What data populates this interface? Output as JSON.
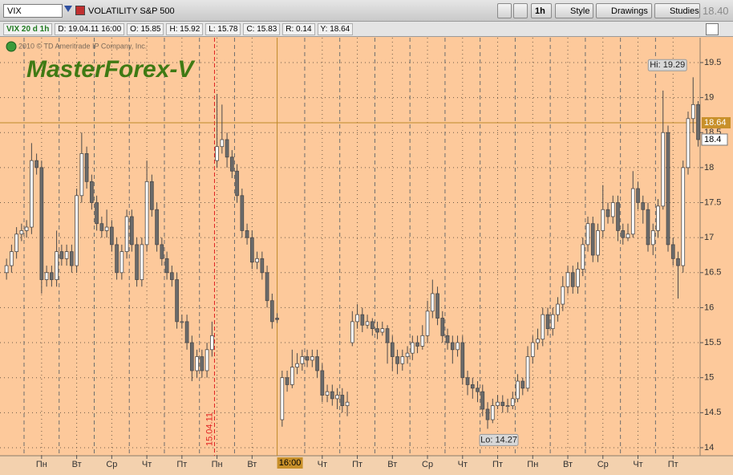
{
  "toolbar": {
    "symbol": "VIX",
    "description": "VOLATILITY S&P 500",
    "timeframe": "1h",
    "buttons": [
      "Style",
      "Drawings",
      "Studies"
    ],
    "last_price": "18.40"
  },
  "info_bar": [
    "VIX 20 d 1h",
    "D: 19.04.11 16:00",
    "O: 15.85",
    "H: 15.92",
    "L: 15.78",
    "C: 15.83",
    "R: 0.14",
    "Y: 18.64"
  ],
  "chart_data": {
    "type": "candlestick",
    "watermark": "MasterForex-V",
    "copyright": "2010 © TD Ameritrade IP Company, Inc.",
    "background": "#fdc99b",
    "up_color": "#ffffff",
    "down_color": "#6b6b6b",
    "grid": true,
    "candles": {
      "open": [
        16.5,
        16.6,
        16.8,
        17.05,
        17.1,
        17.15,
        18.1,
        18.0,
        16.4,
        16.5,
        16.4,
        16.8,
        16.7,
        16.8,
        16.6,
        17.6,
        18.2,
        17.8,
        17.5,
        17.2,
        17.1,
        17.15,
        16.9,
        16.5,
        16.8,
        17.3,
        16.9,
        16.4,
        16.9,
        17.8,
        17.4,
        16.9,
        16.7,
        16.5,
        16.4,
        15.8,
        15.8,
        15.5,
        15.1,
        15.3,
        15.1,
        15.4,
        18.1,
        18.3,
        18.4,
        18.15,
        17.95,
        17.6,
        17.1,
        17.0,
        16.65,
        16.7,
        16.5,
        16.1,
        15.85,
        14.4,
        15.0,
        14.9,
        15.15,
        15.2,
        15.3,
        15.25,
        15.3,
        15.1,
        14.75,
        14.8,
        14.7,
        14.75,
        14.6,
        15.5,
        15.8,
        15.9,
        15.75,
        15.8,
        15.7,
        15.65,
        15.7,
        15.5,
        15.3,
        15.2,
        15.3,
        15.35,
        15.5,
        15.45,
        15.6,
        15.95,
        16.2,
        15.85,
        15.6,
        15.5,
        15.4,
        15.5,
        15.0,
        14.9,
        14.85,
        14.8,
        14.55,
        14.4,
        14.6,
        14.65,
        14.6,
        14.6,
        14.7,
        14.95,
        14.85,
        15.3,
        15.5,
        15.55,
        15.9,
        15.7,
        15.9,
        16.05,
        16.3,
        16.5,
        16.3,
        16.55,
        16.9,
        17.2,
        16.75,
        17.1,
        17.4,
        17.3,
        17.5,
        17.1,
        17.0,
        17.05,
        17.7,
        17.5,
        17.4,
        16.9,
        17.1,
        17.45,
        18.5,
        16.9,
        16.7,
        16.6,
        18.0,
        18.7,
        18.9
      ],
      "high": [
        16.7,
        16.9,
        17.15,
        17.2,
        17.25,
        18.35,
        18.2,
        18.1,
        16.6,
        16.6,
        17.1,
        16.9,
        16.9,
        16.9,
        17.7,
        18.5,
        18.3,
        17.9,
        17.6,
        17.3,
        17.4,
        17.25,
        17.0,
        16.9,
        17.4,
        17.4,
        17.0,
        17.0,
        18.1,
        17.9,
        17.5,
        17.0,
        16.8,
        16.6,
        16.5,
        15.9,
        15.9,
        15.6,
        15.4,
        15.4,
        15.5,
        15.8,
        19.05,
        18.9,
        18.5,
        18.25,
        18.05,
        17.7,
        17.2,
        17.1,
        16.8,
        16.8,
        16.6,
        16.2,
        15.92,
        15.1,
        15.1,
        15.4,
        15.35,
        15.4,
        15.4,
        15.4,
        15.4,
        15.2,
        14.9,
        14.9,
        14.85,
        14.85,
        14.8,
        15.95,
        16.05,
        16.0,
        15.9,
        15.85,
        15.8,
        15.8,
        15.75,
        15.6,
        15.4,
        15.4,
        15.45,
        15.6,
        15.6,
        15.75,
        16.1,
        16.4,
        16.3,
        15.95,
        15.7,
        15.6,
        15.6,
        15.6,
        15.1,
        15.0,
        14.95,
        14.9,
        14.65,
        14.7,
        14.75,
        14.75,
        14.7,
        14.8,
        15.05,
        15.0,
        15.45,
        15.6,
        15.7,
        16.0,
        16.0,
        16.0,
        16.15,
        16.45,
        16.6,
        16.6,
        16.65,
        17.0,
        17.3,
        17.3,
        17.2,
        17.75,
        17.5,
        17.6,
        17.6,
        17.2,
        17.2,
        17.95,
        17.8,
        17.6,
        17.5,
        17.2,
        17.55,
        19.1,
        18.6,
        17.0,
        16.8,
        18.1,
        18.8,
        19.29,
        18.95
      ],
      "low": [
        16.4,
        16.5,
        16.7,
        16.95,
        17.0,
        17.05,
        17.9,
        16.2,
        16.3,
        16.3,
        16.3,
        16.6,
        16.6,
        16.5,
        16.5,
        17.5,
        17.7,
        17.4,
        17.1,
        17.0,
        17.0,
        16.8,
        16.4,
        16.4,
        16.7,
        16.8,
        16.3,
        16.3,
        16.8,
        17.3,
        16.8,
        16.6,
        16.4,
        16.3,
        15.7,
        15.7,
        15.4,
        14.95,
        15.0,
        15.0,
        15.0,
        15.3,
        18.0,
        18.2,
        18.0,
        17.85,
        17.5,
        17.0,
        16.9,
        16.55,
        16.55,
        16.4,
        16.0,
        15.7,
        15.78,
        14.3,
        14.8,
        14.85,
        15.05,
        15.1,
        15.15,
        15.15,
        15.0,
        14.65,
        14.65,
        14.6,
        14.55,
        14.5,
        14.45,
        15.45,
        15.7,
        15.65,
        15.7,
        15.6,
        15.55,
        15.6,
        15.2,
        15.1,
        15.05,
        15.1,
        15.2,
        15.25,
        15.35,
        15.4,
        15.5,
        15.85,
        15.75,
        15.5,
        15.4,
        15.2,
        15.3,
        14.9,
        14.75,
        14.7,
        14.65,
        14.45,
        14.27,
        14.35,
        14.55,
        14.5,
        14.5,
        14.55,
        14.65,
        14.75,
        14.8,
        15.2,
        15.4,
        15.45,
        15.6,
        15.6,
        15.8,
        15.95,
        16.2,
        16.2,
        16.2,
        16.45,
        16.8,
        16.65,
        16.65,
        17.0,
        17.2,
        17.2,
        16.95,
        16.9,
        16.95,
        17.0,
        17.4,
        17.2,
        16.8,
        16.75,
        17.0,
        17.4,
        16.8,
        16.6,
        16.13,
        16.5,
        17.9,
        18.5,
        18.3
      ],
      "close": [
        16.6,
        16.8,
        17.05,
        17.1,
        17.15,
        18.1,
        18.0,
        16.4,
        16.5,
        16.4,
        16.8,
        16.7,
        16.8,
        16.6,
        17.6,
        18.2,
        17.8,
        17.5,
        17.2,
        17.1,
        17.15,
        16.9,
        16.5,
        16.8,
        17.3,
        16.9,
        16.4,
        16.9,
        17.8,
        17.4,
        16.9,
        16.7,
        16.5,
        16.4,
        15.8,
        15.8,
        15.5,
        15.1,
        15.3,
        15.1,
        15.4,
        15.6,
        18.3,
        18.4,
        18.15,
        17.95,
        17.6,
        17.1,
        17.0,
        16.65,
        16.7,
        16.5,
        16.1,
        15.8,
        15.83,
        15.0,
        14.9,
        15.15,
        15.2,
        15.3,
        15.25,
        15.3,
        15.1,
        14.75,
        14.8,
        14.7,
        14.75,
        14.6,
        14.65,
        15.8,
        15.9,
        15.75,
        15.8,
        15.7,
        15.65,
        15.7,
        15.5,
        15.3,
        15.2,
        15.3,
        15.35,
        15.5,
        15.45,
        15.6,
        15.95,
        16.2,
        15.85,
        15.6,
        15.5,
        15.4,
        15.5,
        15.0,
        14.9,
        14.85,
        14.8,
        14.55,
        14.4,
        14.6,
        14.65,
        14.6,
        14.6,
        14.7,
        14.95,
        14.85,
        15.3,
        15.5,
        15.55,
        15.9,
        15.7,
        15.9,
        16.05,
        16.3,
        16.5,
        16.3,
        16.55,
        16.9,
        17.2,
        16.75,
        17.1,
        17.4,
        17.3,
        17.5,
        17.1,
        17.0,
        17.05,
        17.7,
        17.5,
        17.4,
        16.9,
        17.1,
        17.45,
        18.5,
        16.9,
        16.7,
        16.6,
        18.0,
        18.7,
        18.9,
        18.4
      ]
    },
    "xlim": [
      -1.3,
      138.4
    ],
    "xticks": [
      {
        "value": 7,
        "label": "Пн"
      },
      {
        "value": 14,
        "label": "Вт"
      },
      {
        "value": 21,
        "label": "Ср"
      },
      {
        "value": 28,
        "label": "Чт"
      },
      {
        "value": 35,
        "label": "Пт"
      },
      {
        "value": 42,
        "label": "Пн"
      },
      {
        "value": 49,
        "label": "Вт"
      },
      {
        "value": 63,
        "label": "Чт"
      },
      {
        "value": 70,
        "label": "Пт"
      },
      {
        "value": 77,
        "label": "Вт"
      },
      {
        "value": 84,
        "label": "Ср"
      },
      {
        "value": 91,
        "label": "Чт"
      },
      {
        "value": 98,
        "label": "Пт"
      },
      {
        "value": 105,
        "label": "Пн"
      },
      {
        "value": 112,
        "label": "Вт"
      },
      {
        "value": 119,
        "label": "Ср"
      },
      {
        "value": 126,
        "label": "Чт"
      },
      {
        "value": 133,
        "label": "Пт"
      }
    ],
    "ylim": [
      13.885,
      19.855
    ],
    "yticks": [
      14,
      14.5,
      15,
      15.5,
      16,
      16.5,
      17,
      17.5,
      18,
      18.5,
      19,
      19.5
    ],
    "last_price": 18.4,
    "cursor": {
      "x": 54,
      "y": 18.64,
      "x_label": "16:00"
    },
    "session_marker": {
      "x": 41.5,
      "label": "15.04.11"
    },
    "annotations": [
      {
        "label": "Hi: 19.29",
        "value": 19.29
      },
      {
        "label": "Lo: 14.27",
        "value": 14.27
      }
    ]
  }
}
